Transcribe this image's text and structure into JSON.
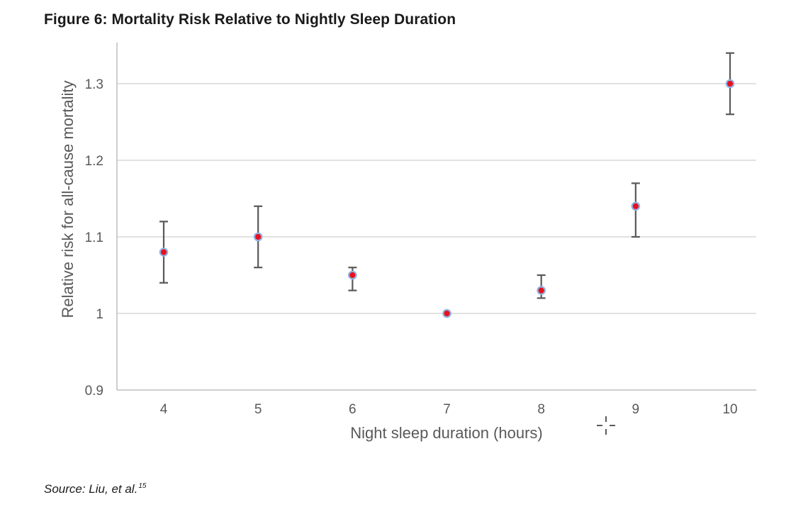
{
  "figure": {
    "title": "Figure 6: Mortality Risk Relative to Nightly Sleep Duration",
    "source_text": "Source: Liu, et al.",
    "source_ref": "15"
  },
  "chart_data": {
    "type": "scatter",
    "title": "",
    "xlabel": "Night sleep duration (hours)",
    "ylabel": "Relative risk for all-cause mortality",
    "x": [
      4,
      5,
      6,
      7,
      8,
      9,
      10
    ],
    "x_tick_labels": [
      "4",
      "5",
      "6",
      "7",
      "8",
      "9",
      "10"
    ],
    "y_tick_values": [
      0.9,
      1,
      1.1,
      1.2,
      1.3
    ],
    "y_tick_labels": [
      "0.9",
      "1",
      "1.1",
      "1.2",
      "1.3"
    ],
    "ylim": [
      0.9,
      1.34
    ],
    "grid": true,
    "legend": "none",
    "series": [
      {
        "values": [
          1.08,
          1.1,
          1.05,
          1.0,
          1.03,
          1.14,
          1.3
        ],
        "error_low": [
          1.04,
          1.06,
          1.03,
          1.0,
          1.02,
          1.1,
          1.26
        ],
        "error_high": [
          1.12,
          1.14,
          1.06,
          1.0,
          1.05,
          1.17,
          1.34
        ]
      }
    ],
    "colors": {
      "marker_fill": "#e8101e",
      "marker_stroke": "#8fb3e0",
      "error_bar": "#595959",
      "grid": "#d9d9d9",
      "axis": "#bfbfbf",
      "tick_text": "#595959",
      "label_text": "#595959"
    }
  }
}
